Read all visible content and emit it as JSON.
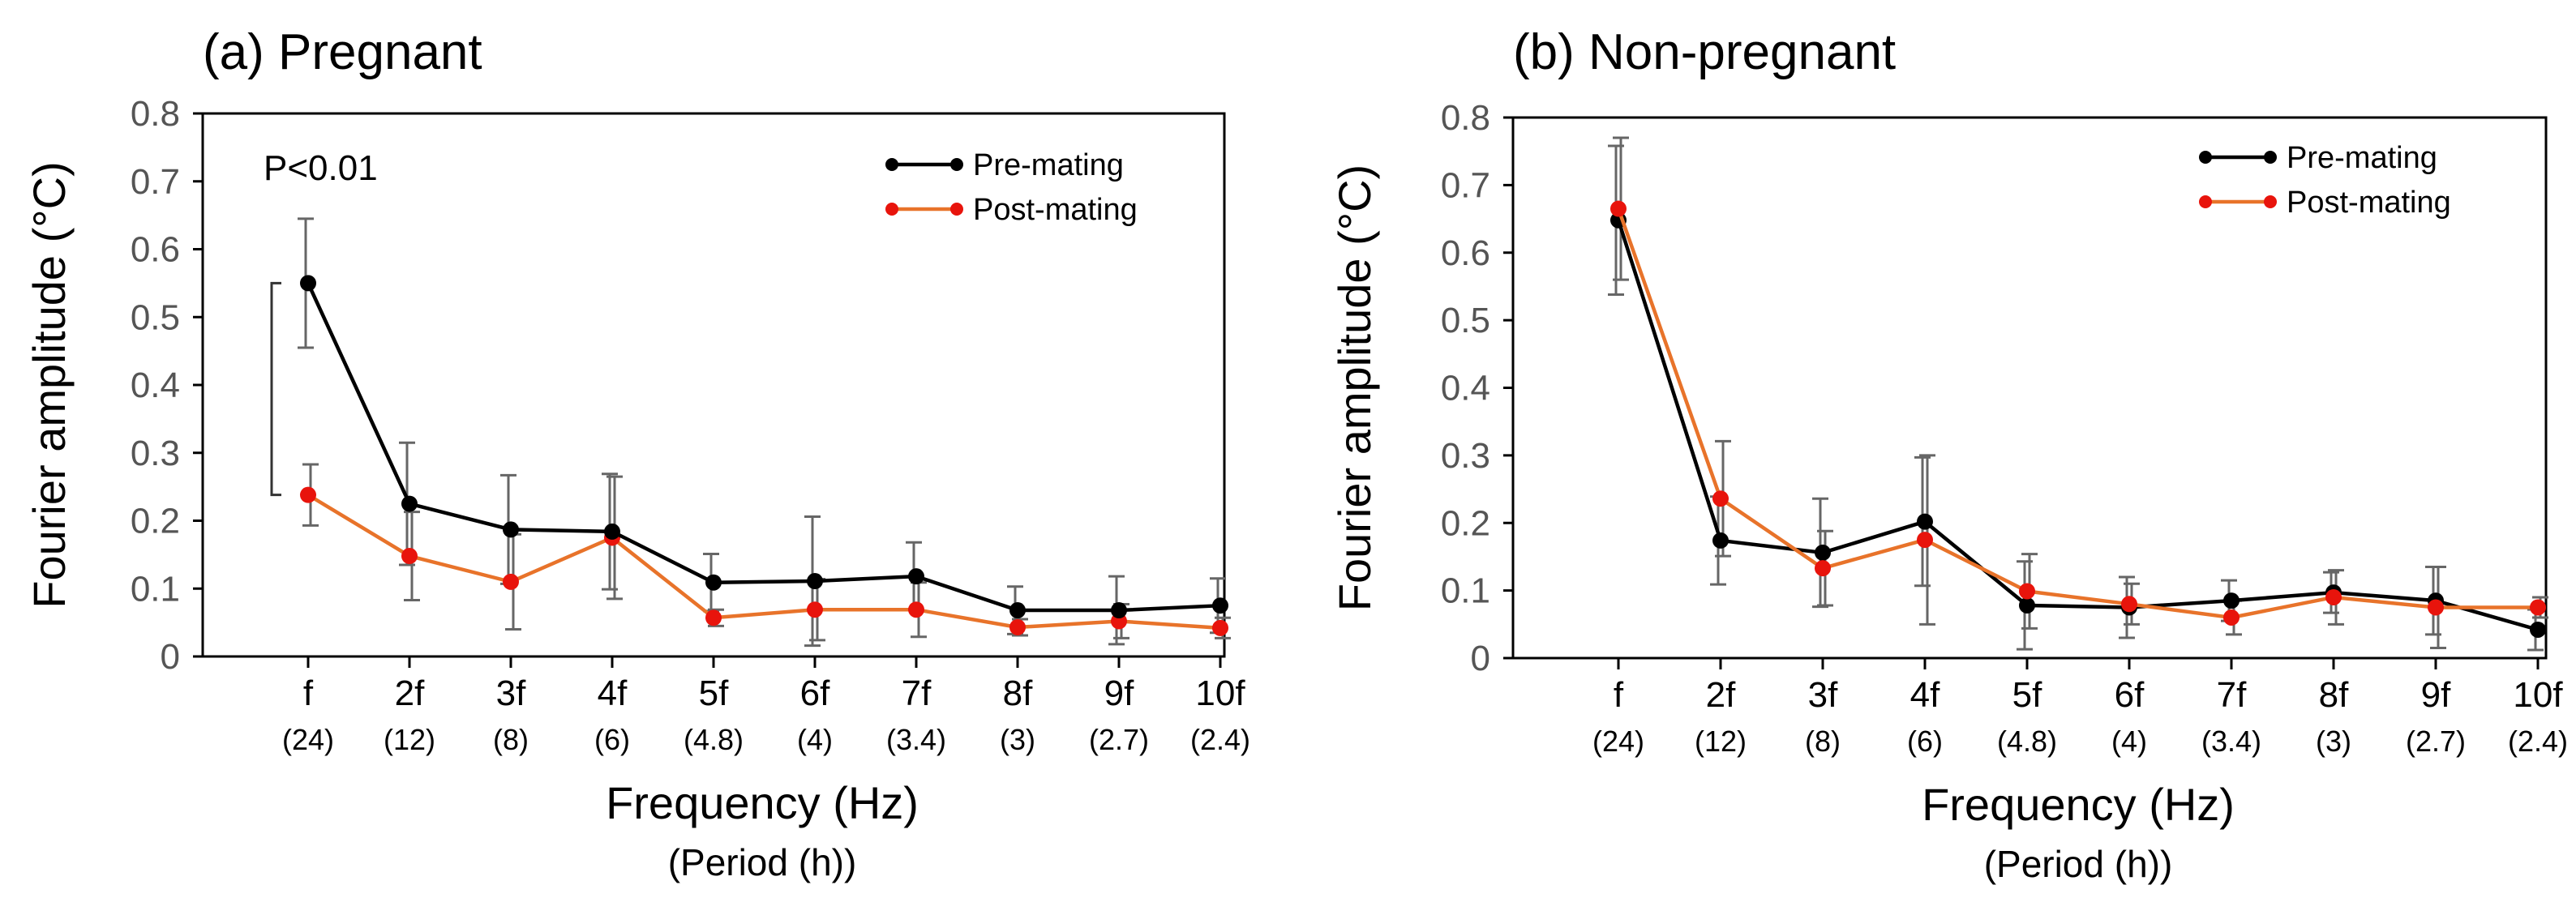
{
  "chart_data": [
    {
      "type": "line",
      "title": "(a) Pregnant",
      "ylabel": "Fourier amplitude (°C)",
      "xlabel": "Frequency (Hz)",
      "xlabel2": "(Period (h))",
      "ylim": [
        0,
        0.8
      ],
      "yticks": [
        "0",
        "0.1",
        "0.2",
        "0.3",
        "0.4",
        "0.5",
        "0.6",
        "0.7",
        "0.8"
      ],
      "categories": [
        "f",
        "2f",
        "3f",
        "4f",
        "5f",
        "6f",
        "7f",
        "8f",
        "9f",
        "10f"
      ],
      "periods": [
        "(24)",
        "(12)",
        "(8)",
        "(6)",
        "(4.8)",
        "(4)",
        "(3.4)",
        "(3)",
        "(2.7)",
        "(2.4)"
      ],
      "legend_position": "top-right",
      "annotation": "P<0.01",
      "series": [
        {
          "name": "Pre-mating",
          "color": "#000000",
          "values": [
            0.55,
            0.225,
            0.187,
            0.184,
            0.109,
            0.111,
            0.118,
            0.068,
            0.068,
            0.075
          ],
          "errors": [
            0.095,
            0.09,
            0.08,
            0.085,
            0.042,
            0.095,
            0.05,
            0.035,
            0.05,
            0.04
          ]
        },
        {
          "name": "Post-mating",
          "color": "#e8732a",
          "marker_color": "#e8140c",
          "values": [
            0.238,
            0.148,
            0.11,
            0.175,
            0.057,
            0.069,
            0.069,
            0.043,
            0.052,
            0.042
          ],
          "errors": [
            0.045,
            0.065,
            0.07,
            0.09,
            0.012,
            0.045,
            0.04,
            0.012,
            0.025,
            0.015
          ]
        }
      ]
    },
    {
      "type": "line",
      "title": "(b) Non-pregnant",
      "ylabel": "Fourier amplitude (°C)",
      "xlabel": "Frequency (Hz)",
      "xlabel2": "(Period (h))",
      "ylim": [
        0,
        0.8
      ],
      "yticks": [
        "0",
        "0.1",
        "0.2",
        "0.3",
        "0.4",
        "0.5",
        "0.6",
        "0.7",
        "0.8"
      ],
      "categories": [
        "f",
        "2f",
        "3f",
        "4f",
        "5f",
        "6f",
        "7f",
        "8f",
        "9f",
        "10f"
      ],
      "periods": [
        "(24)",
        "(12)",
        "(8)",
        "(6)",
        "(4.8)",
        "(4)",
        "(3.4)",
        "(3)",
        "(2.7)",
        "(2.4)"
      ],
      "legend_position": "top-right",
      "annotation": "",
      "series": [
        {
          "name": "Pre-mating",
          "color": "#000000",
          "values": [
            0.648,
            0.174,
            0.156,
            0.202,
            0.078,
            0.075,
            0.085,
            0.097,
            0.085,
            0.042
          ],
          "errors": [
            0.11,
            0.065,
            0.08,
            0.095,
            0.065,
            0.045,
            0.03,
            0.03,
            0.05,
            0.03
          ]
        },
        {
          "name": "Post-mating",
          "color": "#e8732a",
          "marker_color": "#e8140c",
          "values": [
            0.665,
            0.236,
            0.133,
            0.175,
            0.099,
            0.08,
            0.06,
            0.09,
            0.075,
            0.075
          ],
          "errors": [
            0.105,
            0.085,
            0.055,
            0.125,
            0.055,
            0.03,
            0.025,
            0.04,
            0.06,
            0.015
          ]
        }
      ]
    }
  ]
}
